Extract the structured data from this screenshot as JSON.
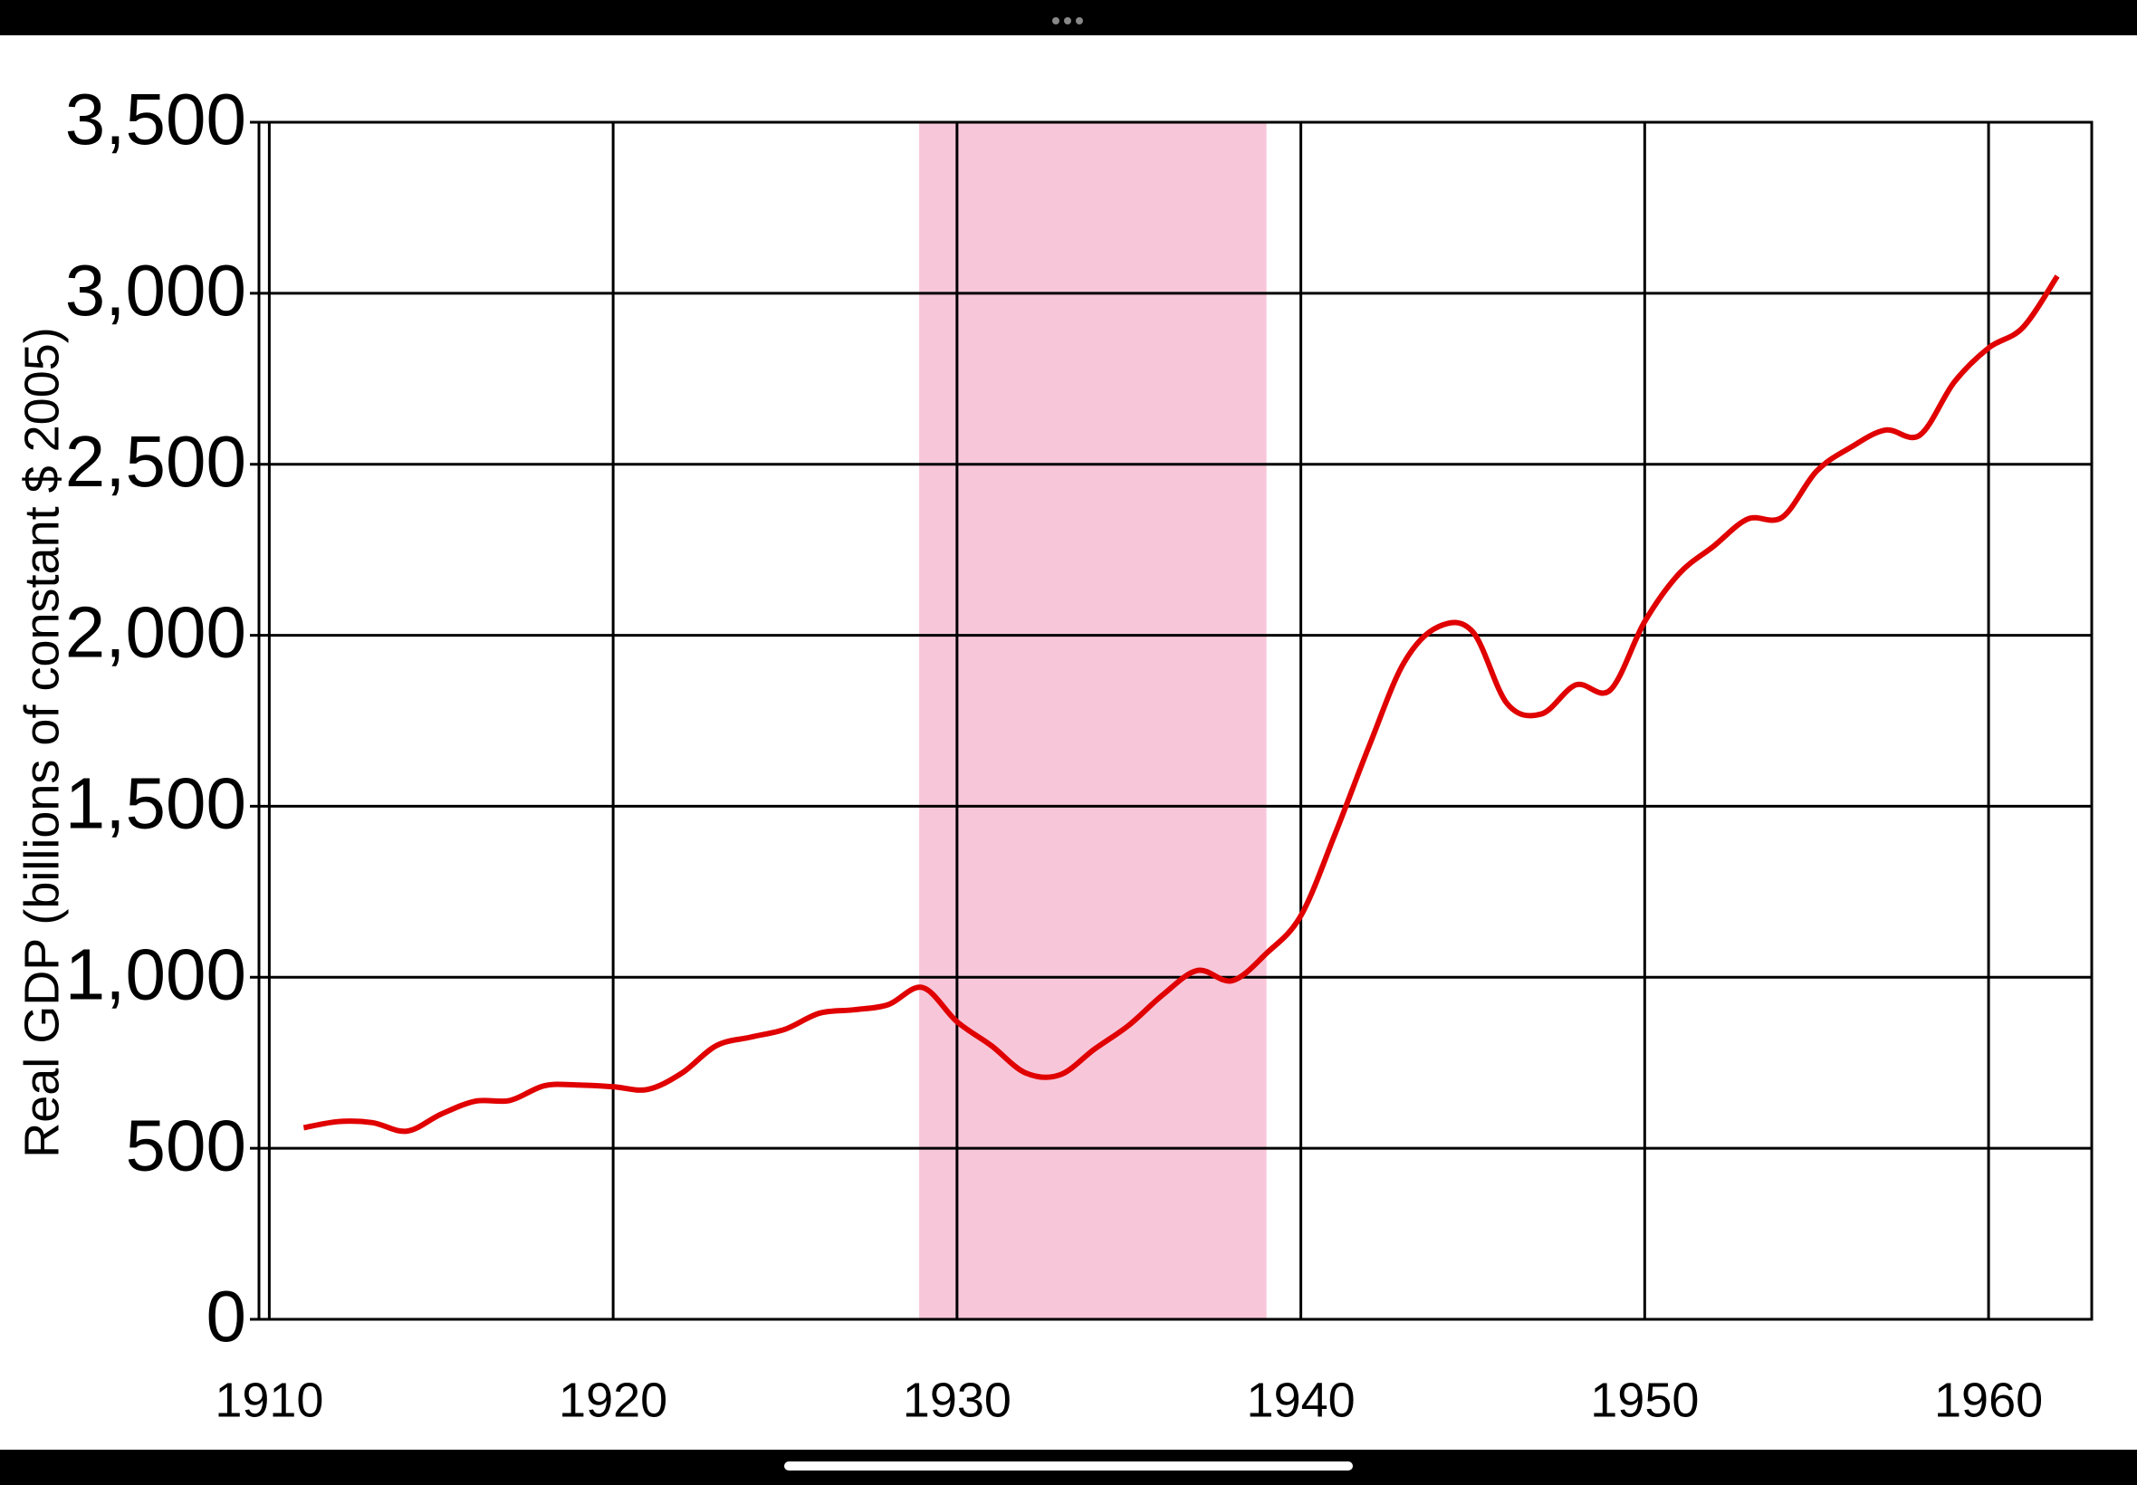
{
  "chart_data": {
    "type": "line",
    "y_label": "Real GDP (billions of  constant $ 2005)",
    "x": [
      1911,
      1912,
      1913,
      1914,
      1915,
      1916,
      1917,
      1918,
      1919,
      1920,
      1921,
      1922,
      1923,
      1924,
      1925,
      1926,
      1927,
      1928,
      1929,
      1930,
      1931,
      1932,
      1933,
      1934,
      1935,
      1936,
      1937,
      1938,
      1939,
      1940,
      1941,
      1942,
      1943,
      1944,
      1945,
      1946,
      1947,
      1948,
      1949,
      1950,
      1951,
      1952,
      1953,
      1954,
      1955,
      1956,
      1957,
      1958,
      1959,
      1960,
      1961,
      1962
    ],
    "series": [
      {
        "name": "Real GDP",
        "color": "#e00000",
        "values": [
          560,
          578,
          575,
          550,
          600,
          638,
          640,
          683,
          685,
          680,
          672,
          720,
          800,
          825,
          848,
          895,
          905,
          920,
          970,
          870,
          800,
          720,
          715,
          790,
          860,
          950,
          1020,
          990,
          1070,
          1180,
          1420,
          1680,
          1920,
          2025,
          2010,
          1800,
          1770,
          1855,
          1840,
          2040,
          2180,
          2260,
          2340,
          2345,
          2480,
          2550,
          2600,
          2585,
          2740,
          2840,
          2900,
          3050
        ]
      }
    ],
    "highlight": {
      "x": [
        1928.9,
        1939
      ],
      "color": "#f8c6d9"
    },
    "xlim": [
      1909.7,
      1963
    ],
    "xticks": [
      1910,
      1920,
      1930,
      1940,
      1950,
      1960
    ],
    "ylim": [
      0,
      3500
    ],
    "yticks": [
      0,
      {
        "value": 500,
        "label": "500"
      },
      {
        "value": 1000,
        "label": "1,000"
      },
      {
        "value": 1500,
        "label": "1,500"
      },
      {
        "value": 2000,
        "label": "2,000"
      },
      {
        "value": 2500,
        "label": "2,500"
      },
      {
        "value": 3000,
        "label": "3,000"
      },
      {
        "value": 3500,
        "label": "3,500"
      }
    ],
    "grid": true
  }
}
